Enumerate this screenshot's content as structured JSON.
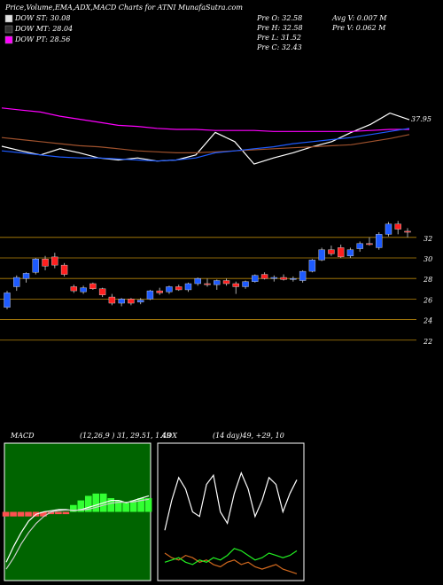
{
  "header": {
    "title": "Price,Volume,EMA,ADX,MACD Charts for ATNI MunafaSutra.com"
  },
  "legend": [
    {
      "label": "DOW ST: 30.08",
      "color": "#e0e0e0"
    },
    {
      "label": "DOW MT: 28.04",
      "color": "#303030"
    },
    {
      "label": "DOW PT: 28.56",
      "color": "#ff00ff"
    }
  ],
  "stats": [
    "Pre  O: 32.58",
    "Pre  H: 32.58",
    "Pre  L: 31.52",
    "Pre  C: 32.43",
    "Avg V: 0.007  M",
    "Pre  V: 0.062  M"
  ],
  "chart_data": [
    {
      "type": "line",
      "ylim": [
        31,
        41
      ],
      "series": [
        {
          "name": "Price",
          "color": "#ffffff",
          "values": [
            35.35,
            34.9,
            34.5,
            35.1,
            34.7,
            34.2,
            34.0,
            34.2,
            33.9,
            34.0,
            34.5,
            36.7,
            35.8,
            33.6,
            34.2,
            34.7,
            35.3,
            35.8,
            36.7,
            37.5,
            38.6,
            37.95
          ]
        },
        {
          "name": "EMA long",
          "color": "#ff00ff",
          "values": [
            39.1,
            38.9,
            38.7,
            38.3,
            38.0,
            37.7,
            37.4,
            37.3,
            37.1,
            37.0,
            37.0,
            36.9,
            36.9,
            36.9,
            36.8,
            36.8,
            36.8,
            36.8,
            36.8,
            36.9,
            37.0,
            37.0
          ]
        },
        {
          "name": "EMA mid",
          "color": "#a0522d",
          "values": [
            36.2,
            36.0,
            35.8,
            35.6,
            35.4,
            35.3,
            35.1,
            34.9,
            34.8,
            34.7,
            34.7,
            34.8,
            34.9,
            35.0,
            35.1,
            35.2,
            35.3,
            35.4,
            35.5,
            35.8,
            36.1,
            36.5
          ]
        },
        {
          "name": "EMA short",
          "color": "#1e5bff",
          "values": [
            34.9,
            34.7,
            34.5,
            34.3,
            34.2,
            34.2,
            34.1,
            34.0,
            33.9,
            34.0,
            34.2,
            34.7,
            34.9,
            35.1,
            35.3,
            35.6,
            35.8,
            36.0,
            36.2,
            36.5,
            36.8,
            37.1
          ]
        }
      ]
    },
    {
      "type": "candlestick",
      "ylim": [
        20.6,
        34.4
      ],
      "yticks": [
        22,
        24,
        26,
        28,
        30,
        32
      ],
      "up_color": "#1e5bff",
      "down_color": "#ff2020",
      "grid_color": "#b8860b",
      "open": [
        25.2,
        27.2,
        28.0,
        28.6,
        29.9,
        30.1,
        29.3,
        27.2,
        26.7,
        27.5,
        27.0,
        26.2,
        25.6,
        26.0,
        25.7,
        26.0,
        26.8,
        26.7,
        27.2,
        26.9,
        27.5,
        27.5,
        27.4,
        27.8,
        27.5,
        27.2,
        27.7,
        28.4,
        28.0,
        28.1,
        27.9,
        27.8,
        28.7,
        29.8,
        30.8,
        31.0,
        30.2,
        30.9,
        31.4,
        31.0,
        32.3,
        33.3,
        32.6
      ],
      "high": [
        26.8,
        28.3,
        28.6,
        30.0,
        30.2,
        30.5,
        29.5,
        27.4,
        27.3,
        27.6,
        27.1,
        26.5,
        26.1,
        26.1,
        26.1,
        26.9,
        27.1,
        27.3,
        27.4,
        27.6,
        28.1,
        28.0,
        27.9,
        28.0,
        27.7,
        27.8,
        28.4,
        28.6,
        28.3,
        28.4,
        28.2,
        28.8,
        29.9,
        31.0,
        31.2,
        31.3,
        31.0,
        31.6,
        32.0,
        32.5,
        33.5,
        33.6,
        32.9
      ],
      "low": [
        25.0,
        26.8,
        27.6,
        28.4,
        28.8,
        29.0,
        28.2,
        26.6,
        26.5,
        26.9,
        26.2,
        25.4,
        25.3,
        25.4,
        25.5,
        25.9,
        26.4,
        26.5,
        26.8,
        26.7,
        27.3,
        27.2,
        26.9,
        27.3,
        26.5,
        27.0,
        27.6,
        27.9,
        27.7,
        27.8,
        27.7,
        27.6,
        28.6,
        29.7,
        30.2,
        30.0,
        30.0,
        30.6,
        31.2,
        30.8,
        32.1,
        32.3,
        32.0
      ],
      "close": [
        26.6,
        28.1,
        28.5,
        29.9,
        29.2,
        29.3,
        28.4,
        26.8,
        27.1,
        27.0,
        26.4,
        25.6,
        26.0,
        25.6,
        25.9,
        26.8,
        26.6,
        27.2,
        26.9,
        27.5,
        28.0,
        27.4,
        27.8,
        27.5,
        27.2,
        27.7,
        28.3,
        28.0,
        28.1,
        27.9,
        28.0,
        28.7,
        29.8,
        30.8,
        30.4,
        30.1,
        30.8,
        31.4,
        31.3,
        32.3,
        33.3,
        32.8,
        32.5
      ]
    },
    {
      "type": "macd",
      "title": "MACD",
      "subtitle": "(12,26,9 ) 31, 29.51, 1.49",
      "ylim": [
        -3,
        3
      ],
      "series": [
        {
          "name": "MACD",
          "color": "#ffffff",
          "values": [
            -2.2,
            -1.5,
            -0.9,
            -0.4,
            -0.1,
            0.0,
            0.05,
            0.1,
            0.1,
            0.05,
            0.1,
            0.2,
            0.3,
            0.4,
            0.5,
            0.5,
            0.4,
            0.5,
            0.6,
            0.7
          ]
        },
        {
          "name": "Signal",
          "color": "#cccccc",
          "values": [
            -2.5,
            -2.0,
            -1.4,
            -0.9,
            -0.5,
            -0.2,
            0,
            0.05,
            0.08,
            0.07,
            0.08,
            0.12,
            0.2,
            0.3,
            0.38,
            0.42,
            0.42,
            0.44,
            0.5,
            0.55
          ]
        }
      ],
      "histogram": [
        -0.2,
        -0.2,
        -0.2,
        -0.2,
        -0.2,
        -0.2,
        -0.1,
        -0.1,
        -0.1,
        0.3,
        0.5,
        0.7,
        0.8,
        0.8,
        0.6,
        0.5,
        0.4,
        0.5,
        0.6,
        0.6
      ],
      "hist_up_color": "#33ff33",
      "hist_down_color": "#ff5050"
    },
    {
      "type": "adx",
      "title": "ADX",
      "subtitle": "(14 day)49, +29, 10",
      "ylim": [
        0,
        60
      ],
      "series": [
        {
          "name": "ADX",
          "color": "#ffffff",
          "values": [
            22,
            35,
            45,
            40,
            30,
            28,
            42,
            46,
            30,
            25,
            38,
            47,
            40,
            28,
            35,
            45,
            42,
            30,
            38,
            44
          ]
        },
        {
          "name": "-DI",
          "color": "#d2691e",
          "values": [
            12,
            10,
            9,
            11,
            10,
            8,
            9,
            7,
            6,
            8,
            9,
            7,
            8,
            6,
            5,
            6,
            7,
            5,
            4,
            3
          ]
        },
        {
          "name": "+DI",
          "color": "#22ee22",
          "values": [
            8,
            9,
            10,
            8,
            7,
            9,
            8,
            10,
            9,
            11,
            14,
            13,
            11,
            9,
            10,
            12,
            11,
            10,
            11,
            13
          ]
        }
      ]
    }
  ]
}
